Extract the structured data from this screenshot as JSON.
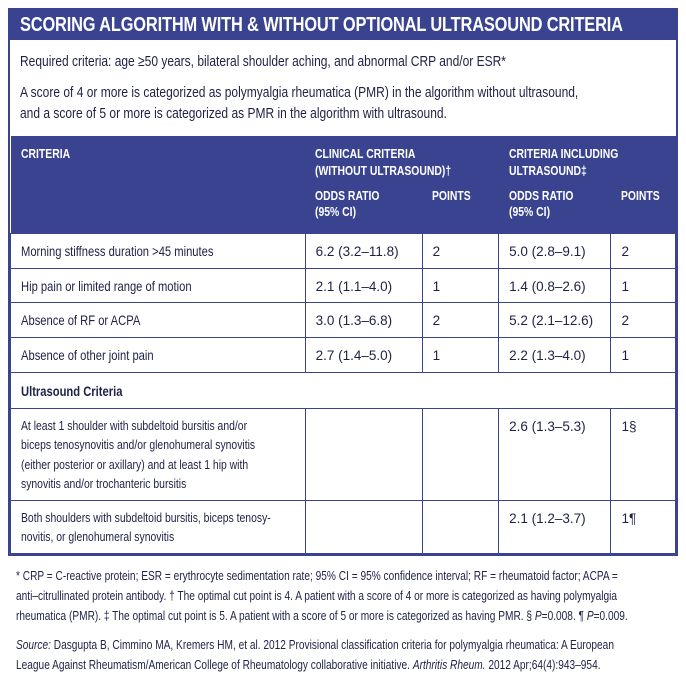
{
  "colors": {
    "primary_blue": "#394390",
    "text_navy": "#1e2145",
    "header_text": "#ffffff",
    "background": "#ffffff"
  },
  "title": "SCORING ALGORITHM WITH & WITHOUT OPTIONAL ULTRASOUND CRITERIA",
  "intro": {
    "required": "Required criteria: age ≥50 years, bilateral shoulder aching, and abnormal CRP and/or ESR*",
    "score_note_lines": [
      "A score of 4 or more is categorized as polymyalgia rheumatica (PMR) in the algorithm without ultrasound,",
      "and a score of 5 or more is categorized as PMR in the algorithm with ultrasound."
    ]
  },
  "table": {
    "col1_header": "CRITERIA",
    "group_headers": {
      "clinical_lines": [
        "CLINICAL CRITERIA",
        "(WITHOUT ULTRASOUND)†"
      ],
      "ultrasound_lines": [
        "CRITERIA INCLUDING",
        "ULTRASOUND‡"
      ]
    },
    "sub_headers": {
      "odds_ratio_lines": [
        "ODDS RATIO",
        "(95% CI)"
      ],
      "points": "POINTS"
    },
    "rows": [
      {
        "criteria": "Morning stiffness duration >45 minutes",
        "or_without": "6.2 (3.2–11.8)",
        "pts_without": "2",
        "or_with": "5.0 (2.8–9.1)",
        "pts_with": "2"
      },
      {
        "criteria": "Hip pain or limited range of motion",
        "or_without": "2.1 (1.1–4.0)",
        "pts_without": "1",
        "or_with": "1.4 (0.8–2.6)",
        "pts_with": "1"
      },
      {
        "criteria": "Absence of RF or ACPA",
        "or_without": "3.0 (1.3–6.8)",
        "pts_without": "2",
        "or_with": "5.2 (2.1–12.6)",
        "pts_with": "2"
      },
      {
        "criteria": "Absence of other joint pain",
        "or_without": "2.7 (1.4–5.0)",
        "pts_without": "1",
        "or_with": "2.2 (1.3–4.0)",
        "pts_with": "1"
      }
    ],
    "section_header": "Ultrasound Criteria",
    "ultrasound_rows": [
      {
        "criteria_lines": [
          "At least 1 shoulder with subdeltoid bursitis and/or",
          "biceps tenosynovitis and/or glenohumeral synovitis",
          "(either posterior or axillary) and at least 1 hip with",
          "synovitis and/or trochanteric bursitis"
        ],
        "or_without": "",
        "pts_without": "",
        "or_with": "2.6 (1.3–5.3)",
        "pts_with": "1§"
      },
      {
        "criteria_lines": [
          "Both shoulders with subdeltoid bursitis, biceps tenosy-",
          "novitis, or glenohumeral synovitis"
        ],
        "or_without": "",
        "pts_without": "",
        "or_with": "2.1 (1.2–3.7)",
        "pts_with": "1¶"
      }
    ]
  },
  "footnote_segments": [
    {
      "t": "* CRP = C-reactive protein; ESR = erythrocyte sedimentation rate; 95% CI = 95% confidence interval; RF = rheumatoid factor; ACPA =\nanti–citrullinated protein antibody. † The optimal cut point is 4. A patient with a score of 4 or more is categorized as having polymyalgia\nrheumatica (PMR). ‡ The optimal cut point is 5. A patient with a score of 5 or more is categorized as having PMR. § "
    },
    {
      "t": "P",
      "i": true
    },
    {
      "t": "=0.008. ¶ "
    },
    {
      "t": "P",
      "i": true
    },
    {
      "t": "=0.009."
    }
  ],
  "source_segments": [
    {
      "t": "Source:",
      "i": true
    },
    {
      "t": " Dasgupta B, Cimmino MA, Kremers HM, et al. 2012 Provisional classification criteria for polymyalgia rheumatica: A European\nLeague Against Rheumatism/American College of Rheumatology collaborative initiative. "
    },
    {
      "t": "Arthritis Rheum.",
      "i": true
    },
    {
      "t": " 2012 Apr;64(4):943–954."
    }
  ]
}
